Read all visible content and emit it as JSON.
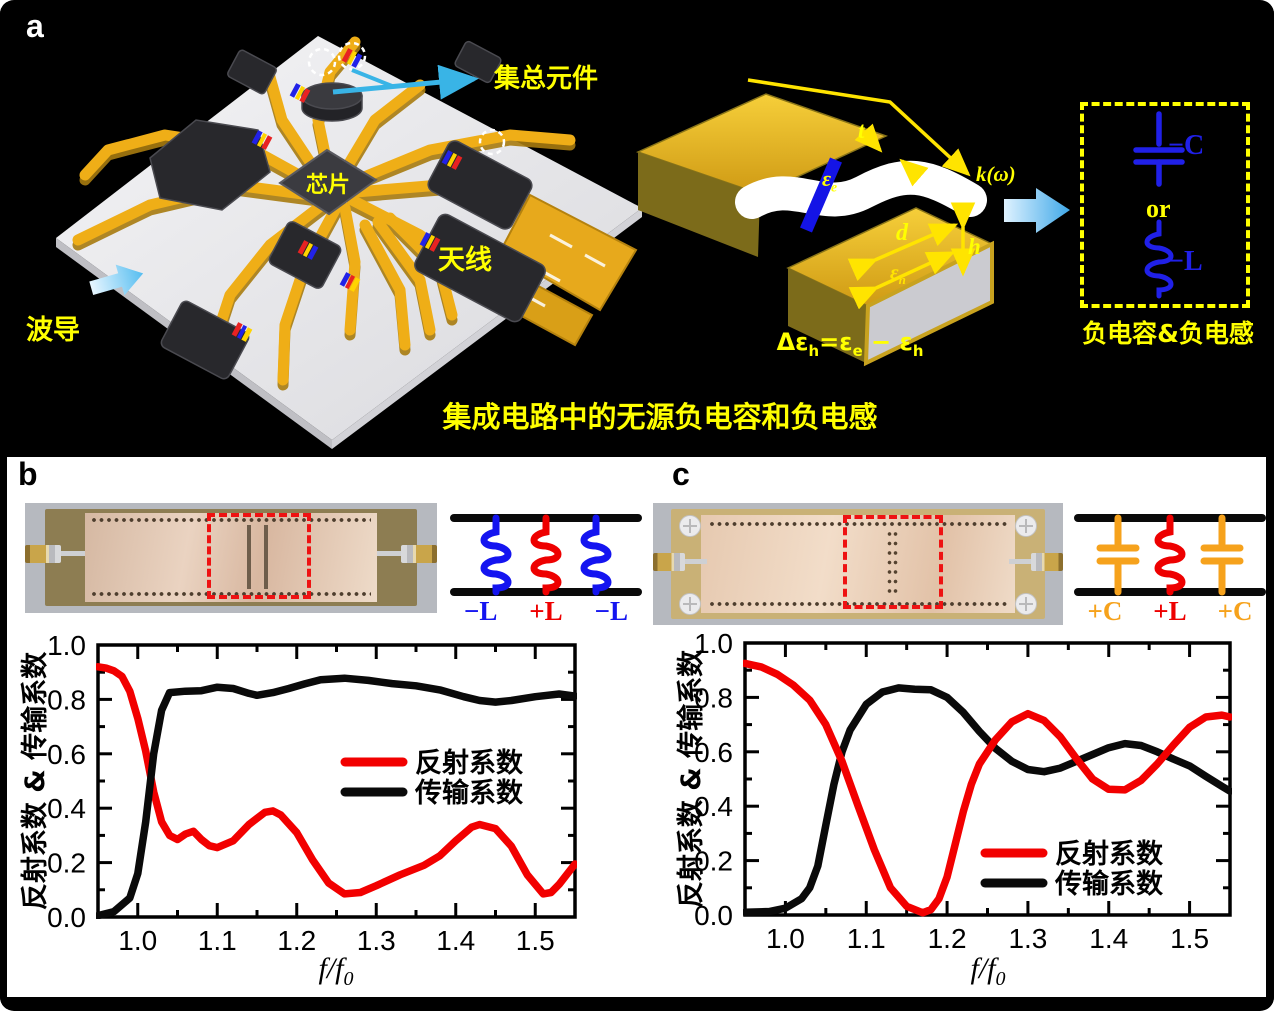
{
  "panel_a": {
    "label": "a",
    "lumped": "集总元件",
    "chip": "芯片",
    "antenna": "天线",
    "waveguide": "波导",
    "caption": "集成电路中的无源负电容和负电感",
    "schematic": {
      "t": "t",
      "k": "k(ω)",
      "d": "d",
      "h": "h",
      "eps_e": {
        "base": "ε",
        "sub": "e"
      },
      "eps_h": {
        "base": "ε",
        "sub": "h"
      },
      "formula": {
        "p1": "Δε",
        "s1": "h",
        "p2": "=ε",
        "s2": "e",
        "p3": " − ε",
        "s3": "h"
      }
    },
    "circuit": {
      "neg_c": "−C",
      "or_label": "or",
      "neg_l": "−L",
      "caption": "负电容&负电感"
    }
  },
  "panel_b": {
    "label": "b",
    "elements": [
      "−L",
      "+L",
      "−L"
    ],
    "element_colors": [
      "#1414f0",
      "#ee0000",
      "#1414f0"
    ]
  },
  "panel_c": {
    "label": "c",
    "elements": [
      "+C",
      "+L",
      "+C"
    ],
    "element_colors": [
      "#f6a21c",
      "#ee0000",
      "#f6a21c"
    ]
  },
  "colors": {
    "curve_red": "#f20000",
    "curve_black": "#0a0a0a",
    "blue": "#2020e8",
    "orange": "#f6a21c",
    "yellow": "#ffff00",
    "cyan": "#39b4e6",
    "gold": "#efae17"
  },
  "chart_data": [
    {
      "type": "line",
      "panel": "b",
      "xlabel_main": "f/f",
      "xlabel_sub": "0",
      "ylabel": "反射系数 & 传输系数",
      "x_range": [
        0.95,
        1.55
      ],
      "y_range": [
        0.0,
        1.0
      ],
      "x_ticks": [
        1.0,
        1.1,
        1.2,
        1.3,
        1.4,
        1.5
      ],
      "x_tick_labels": [
        "1.0",
        "1.1",
        "1.2",
        "1.3",
        "1.4",
        "1.5"
      ],
      "x_minor_step": 0.05,
      "y_ticks": [
        0.0,
        0.2,
        0.4,
        0.6,
        0.8,
        1.0
      ],
      "y_tick_labels": [
        "0.0",
        "0.2",
        "0.4",
        "0.6",
        "0.8",
        "1.0"
      ],
      "y_minor_step": 0.1,
      "grid": false,
      "legend_position": "center-right",
      "series": [
        {
          "name": "反射系数",
          "color": "#f20000",
          "points": [
            [
              0.95,
              0.92
            ],
            [
              0.96,
              0.915
            ],
            [
              0.97,
              0.905
            ],
            [
              0.98,
              0.885
            ],
            [
              0.99,
              0.83
            ],
            [
              1.0,
              0.73
            ],
            [
              1.01,
              0.61
            ],
            [
              1.02,
              0.46
            ],
            [
              1.03,
              0.35
            ],
            [
              1.04,
              0.3
            ],
            [
              1.05,
              0.285
            ],
            [
              1.06,
              0.305
            ],
            [
              1.07,
              0.315
            ],
            [
              1.08,
              0.285
            ],
            [
              1.09,
              0.262
            ],
            [
              1.1,
              0.255
            ],
            [
              1.12,
              0.28
            ],
            [
              1.14,
              0.34
            ],
            [
              1.16,
              0.385
            ],
            [
              1.17,
              0.39
            ],
            [
              1.18,
              0.375
            ],
            [
              1.2,
              0.31
            ],
            [
              1.22,
              0.21
            ],
            [
              1.24,
              0.125
            ],
            [
              1.26,
              0.085
            ],
            [
              1.28,
              0.09
            ],
            [
              1.3,
              0.115
            ],
            [
              1.33,
              0.155
            ],
            [
              1.36,
              0.19
            ],
            [
              1.38,
              0.225
            ],
            [
              1.4,
              0.28
            ],
            [
              1.42,
              0.33
            ],
            [
              1.43,
              0.34
            ],
            [
              1.45,
              0.325
            ],
            [
              1.47,
              0.26
            ],
            [
              1.49,
              0.155
            ],
            [
              1.51,
              0.085
            ],
            [
              1.52,
              0.09
            ],
            [
              1.53,
              0.12
            ],
            [
              1.55,
              0.195
            ]
          ]
        },
        {
          "name": "传输系数",
          "color": "#0a0a0a",
          "points": [
            [
              0.95,
              0.005
            ],
            [
              0.97,
              0.02
            ],
            [
              0.99,
              0.07
            ],
            [
              1.0,
              0.16
            ],
            [
              1.01,
              0.35
            ],
            [
              1.02,
              0.6
            ],
            [
              1.03,
              0.76
            ],
            [
              1.04,
              0.825
            ],
            [
              1.06,
              0.83
            ],
            [
              1.08,
              0.832
            ],
            [
              1.1,
              0.845
            ],
            [
              1.12,
              0.84
            ],
            [
              1.14,
              0.822
            ],
            [
              1.15,
              0.815
            ],
            [
              1.17,
              0.825
            ],
            [
              1.19,
              0.84
            ],
            [
              1.21,
              0.857
            ],
            [
              1.23,
              0.872
            ],
            [
              1.26,
              0.878
            ],
            [
              1.29,
              0.87
            ],
            [
              1.32,
              0.858
            ],
            [
              1.35,
              0.85
            ],
            [
              1.38,
              0.835
            ],
            [
              1.41,
              0.81
            ],
            [
              1.43,
              0.796
            ],
            [
              1.45,
              0.79
            ],
            [
              1.47,
              0.796
            ],
            [
              1.5,
              0.81
            ],
            [
              1.53,
              0.82
            ],
            [
              1.55,
              0.812
            ]
          ]
        }
      ]
    },
    {
      "type": "line",
      "panel": "c",
      "xlabel_main": "f/f",
      "xlabel_sub": "0",
      "ylabel": "反射系数 & 传输系数",
      "x_range": [
        0.95,
        1.55
      ],
      "y_range": [
        0.0,
        1.0
      ],
      "x_ticks": [
        1.0,
        1.1,
        1.2,
        1.3,
        1.4,
        1.5
      ],
      "x_tick_labels": [
        "1.0",
        "1.1",
        "1.2",
        "1.3",
        "1.4",
        "1.5"
      ],
      "x_minor_step": 0.05,
      "y_ticks": [
        0.0,
        0.2,
        0.4,
        0.6,
        0.8,
        1.0
      ],
      "y_tick_labels": [
        "0.0",
        "0.2",
        "0.4",
        "0.6",
        "0.8",
        "1.0"
      ],
      "y_minor_step": 0.1,
      "grid": false,
      "legend_position": "bottom-right",
      "series": [
        {
          "name": "反射系数",
          "color": "#f20000",
          "points": [
            [
              0.95,
              0.925
            ],
            [
              0.97,
              0.912
            ],
            [
              0.99,
              0.885
            ],
            [
              1.01,
              0.845
            ],
            [
              1.03,
              0.79
            ],
            [
              1.05,
              0.7
            ],
            [
              1.07,
              0.565
            ],
            [
              1.09,
              0.4
            ],
            [
              1.11,
              0.24
            ],
            [
              1.13,
              0.1
            ],
            [
              1.15,
              0.032
            ],
            [
              1.17,
              0.008
            ],
            [
              1.18,
              0.02
            ],
            [
              1.19,
              0.06
            ],
            [
              1.2,
              0.14
            ],
            [
              1.21,
              0.26
            ],
            [
              1.22,
              0.38
            ],
            [
              1.23,
              0.48
            ],
            [
              1.24,
              0.555
            ],
            [
              1.26,
              0.645
            ],
            [
              1.28,
              0.71
            ],
            [
              1.3,
              0.74
            ],
            [
              1.32,
              0.715
            ],
            [
              1.34,
              0.655
            ],
            [
              1.36,
              0.575
            ],
            [
              1.38,
              0.5
            ],
            [
              1.4,
              0.462
            ],
            [
              1.42,
              0.46
            ],
            [
              1.44,
              0.495
            ],
            [
              1.46,
              0.555
            ],
            [
              1.48,
              0.625
            ],
            [
              1.5,
              0.69
            ],
            [
              1.52,
              0.728
            ],
            [
              1.54,
              0.735
            ],
            [
              1.55,
              0.728
            ]
          ]
        },
        {
          "name": "传输系数",
          "color": "#0a0a0a",
          "points": [
            [
              0.95,
              0.01
            ],
            [
              0.98,
              0.013
            ],
            [
              1.0,
              0.025
            ],
            [
              1.02,
              0.06
            ],
            [
              1.03,
              0.1
            ],
            [
              1.04,
              0.18
            ],
            [
              1.05,
              0.33
            ],
            [
              1.06,
              0.48
            ],
            [
              1.07,
              0.6
            ],
            [
              1.08,
              0.68
            ],
            [
              1.1,
              0.775
            ],
            [
              1.12,
              0.82
            ],
            [
              1.14,
              0.835
            ],
            [
              1.16,
              0.83
            ],
            [
              1.18,
              0.828
            ],
            [
              1.2,
              0.8
            ],
            [
              1.22,
              0.745
            ],
            [
              1.24,
              0.675
            ],
            [
              1.26,
              0.612
            ],
            [
              1.28,
              0.565
            ],
            [
              1.3,
              0.535
            ],
            [
              1.32,
              0.527
            ],
            [
              1.34,
              0.54
            ],
            [
              1.36,
              0.565
            ],
            [
              1.38,
              0.59
            ],
            [
              1.4,
              0.615
            ],
            [
              1.42,
              0.63
            ],
            [
              1.44,
              0.623
            ],
            [
              1.46,
              0.6
            ],
            [
              1.48,
              0.573
            ],
            [
              1.5,
              0.548
            ],
            [
              1.52,
              0.51
            ],
            [
              1.54,
              0.473
            ],
            [
              1.55,
              0.455
            ]
          ]
        }
      ]
    }
  ]
}
